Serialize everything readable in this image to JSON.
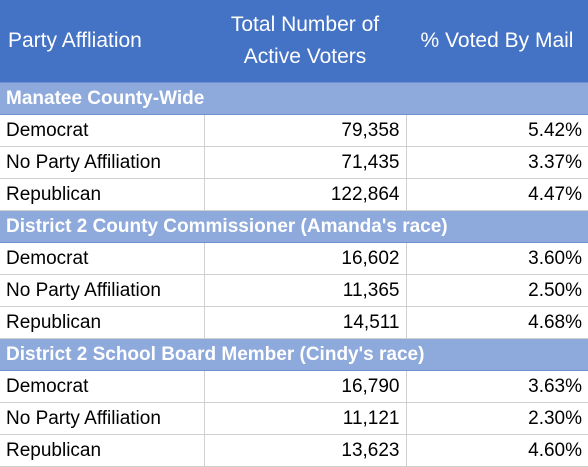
{
  "header": {
    "party": "Party Affliation",
    "total": "Total Number of Active Voters",
    "pct": "% Voted By Mail"
  },
  "sections": [
    {
      "title": "Manatee County-Wide",
      "rows": [
        {
          "party": "Democrat",
          "total": "79,358",
          "pct": "5.42%"
        },
        {
          "party": "No Party Affiliation",
          "total": "71,435",
          "pct": "3.37%"
        },
        {
          "party": "Republican",
          "total": "122,864",
          "pct": "4.47%"
        }
      ]
    },
    {
      "title": "District 2 County Commissioner (Amanda's race)",
      "rows": [
        {
          "party": "Democrat",
          "total": "16,602",
          "pct": "3.60%"
        },
        {
          "party": "No Party Affiliation",
          "total": "11,365",
          "pct": "2.50%"
        },
        {
          "party": "Republican",
          "total": "14,511",
          "pct": "4.68%"
        }
      ]
    },
    {
      "title": "District 2 School Board Member (Cindy's race)",
      "rows": [
        {
          "party": "Democrat",
          "total": "16,790",
          "pct": "3.63%"
        },
        {
          "party": "No Party Affiliation",
          "total": "11,121",
          "pct": "2.30%"
        },
        {
          "party": "Republican",
          "total": "13,623",
          "pct": "4.60%"
        }
      ]
    }
  ],
  "colors": {
    "header_bg": "#4472c4",
    "section_bg": "#8ea9db"
  }
}
